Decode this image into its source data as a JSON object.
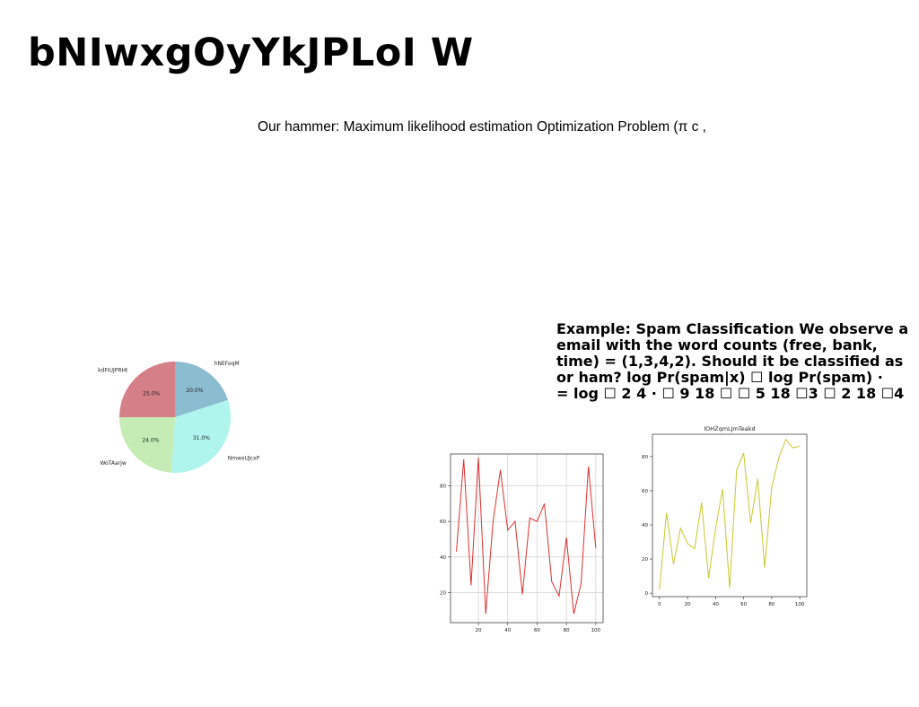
{
  "slide": {
    "title": "bNIwxgOyYkJPLoI W",
    "subtitle": "Our hammer: Maximum likelihood estimation Optimization Problem (π⁣ c , ⁣⁣",
    "example_lines": [
      "Example: Spam Classification We observe a",
      "email with the word counts (free, bank,",
      "time) = (1,3,4,2). Should it be classified as",
      "or ham? log Pr(spam|x) ☐ log Pr(spam) ·",
      "= log ☐ 2 4 · ☐ 9 18 ☐ ☐ 5 18 ☐3 ☐ 2 18 ☐4"
    ]
  },
  "chart_data": [
    {
      "type": "pie",
      "labels": [
        "hNEFoqM",
        "NmwxUJcxP",
        "WoTAarjw",
        "kdFIUJPRHt"
      ],
      "values": [
        20.0,
        31.0,
        24.0,
        25.0
      ],
      "value_labels": [
        "20.0%",
        "31.0%",
        "24.0%",
        "25.0%"
      ],
      "colors": [
        "#8cbccf",
        "#aff5ee",
        "#c5ecb4",
        "#d57f88"
      ],
      "start_angle_deg": 90,
      "direction": "clockwise"
    },
    {
      "type": "line",
      "title": "",
      "x": [
        5,
        10,
        15,
        20,
        25,
        30,
        35,
        40,
        45,
        50,
        55,
        60,
        65,
        70,
        75,
        80,
        85,
        90,
        95,
        100
      ],
      "series": [
        {
          "values": [
            43,
            95,
            24,
            96,
            8,
            60,
            89,
            55,
            60,
            19,
            62,
            60,
            70,
            26,
            18,
            51,
            8,
            25,
            91,
            45
          ],
          "color": "#e03030"
        }
      ],
      "xticks": [
        20,
        40,
        60,
        80,
        100
      ],
      "yticks": [
        20,
        40,
        60,
        80
      ],
      "xlim": [
        1,
        105
      ],
      "ylim": [
        3,
        98
      ],
      "grid": true
    },
    {
      "type": "line",
      "title": "lOHZqmLJmTeakd",
      "x": [
        0,
        5,
        10,
        15,
        20,
        25,
        30,
        35,
        40,
        45,
        50,
        55,
        60,
        65,
        70,
        75,
        80,
        85,
        90,
        95,
        100
      ],
      "series": [
        {
          "values": [
            2,
            47,
            17,
            38,
            29,
            26,
            53,
            9,
            38,
            61,
            3,
            72,
            82,
            41,
            67,
            15,
            62,
            79,
            90,
            85,
            86
          ],
          "color": "#c8c830"
        }
      ],
      "xticks": [
        0,
        20,
        40,
        60,
        80,
        100
      ],
      "yticks": [
        0,
        20,
        40,
        60,
        80
      ],
      "xlim": [
        -5,
        105
      ],
      "ylim": [
        -2,
        93
      ],
      "grid": false
    }
  ]
}
